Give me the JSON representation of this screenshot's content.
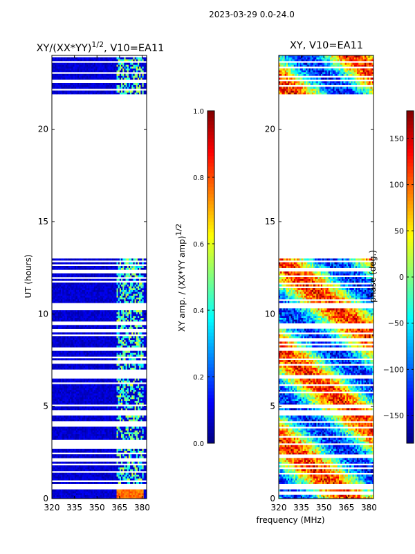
{
  "chart_data": [
    {
      "type": "heatmap",
      "panel": "left",
      "title_main": "XY/(XX*YY)",
      "title_sup": "1/2",
      "title_tail": ", V10=EA11",
      "xlabel": "",
      "ylabel": "UT (hours)",
      "xlim": [
        320,
        383
      ],
      "ylim": [
        0,
        24
      ],
      "xticks": [
        320,
        335,
        350,
        365,
        380
      ],
      "yticks": [
        0,
        5,
        10,
        15,
        20
      ],
      "colorbar": {
        "label_main": "XY amp. / (XX*YY amp)",
        "label_sup": "1/2",
        "range": [
          0.0,
          1.0
        ],
        "ticks": [
          "0.0",
          "0.2",
          "0.4",
          "0.6",
          "0.8",
          "1.0"
        ],
        "colormap": "jet"
      },
      "data_blocks_hours": [
        [
          0.0,
          0.5
        ],
        [
          0.8,
          4.5
        ],
        [
          4.8,
          6.5
        ],
        [
          6.7,
          8.0
        ],
        [
          8.2,
          10.4
        ],
        [
          10.6,
          13.0
        ],
        [
          21.9,
          24.0
        ]
      ],
      "active_band_mhz": [
        363,
        380
      ],
      "typical_value": 0.08,
      "band_value": 0.45
    },
    {
      "type": "heatmap",
      "panel": "right",
      "title": "XY, V10=EA11",
      "xlabel": "frequency (MHz)",
      "ylabel": "",
      "xlim": [
        320,
        383
      ],
      "ylim": [
        0,
        24
      ],
      "xticks": [
        320,
        335,
        350,
        365,
        380
      ],
      "yticks": [
        0,
        5,
        10,
        15,
        20
      ],
      "colorbar": {
        "label": "phase (deg.)",
        "range": [
          -180,
          180
        ],
        "ticks": [
          "−150",
          "−100",
          "−50",
          "0",
          "50",
          "100",
          "150"
        ],
        "colormap": "jet"
      },
      "data_blocks_hours": [
        [
          0.0,
          0.5
        ],
        [
          0.8,
          4.5
        ],
        [
          4.8,
          6.5
        ],
        [
          6.7,
          8.0
        ],
        [
          8.2,
          10.4
        ],
        [
          10.6,
          13.0
        ],
        [
          21.9,
          24.0
        ]
      ]
    }
  ],
  "suptitle": "2023-03-29 0.0-24.0"
}
